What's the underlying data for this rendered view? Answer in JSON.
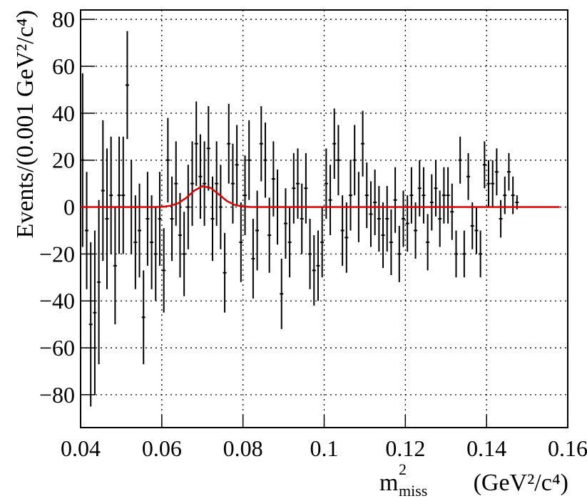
{
  "chart_data": {
    "type": "scatter",
    "y_label": "Events/(0.001 GeV²/c⁴)",
    "x_label": {
      "base": "m",
      "sup": "2",
      "sub": "miss",
      "unit": "(GeV²/c⁴)"
    },
    "xlim": [
      0.04,
      0.16
    ],
    "ylim": [
      -94,
      84
    ],
    "xticks": [
      0.04,
      0.06,
      0.08,
      0.1,
      0.12,
      0.14,
      0.16
    ],
    "yticks": [
      {
        "value": -80,
        "label": "−80"
      },
      {
        "value": -60,
        "label": "−60"
      },
      {
        "value": -40,
        "label": "−40"
      },
      {
        "value": -20,
        "label": "−20"
      },
      0,
      20,
      40,
      60,
      80
    ],
    "grid": true,
    "series": [
      {
        "color": "#000000",
        "x": [
          0.0405,
          0.0415,
          0.0425,
          0.0435,
          0.0445,
          0.0455,
          0.0465,
          0.0475,
          0.0485,
          0.0495,
          0.0505,
          0.0515,
          0.0525,
          0.0535,
          0.0545,
          0.0555,
          0.0565,
          0.0575,
          0.0585,
          0.0595,
          0.0605,
          0.0615,
          0.0625,
          0.0635,
          0.0645,
          0.0655,
          0.0665,
          0.0675,
          0.0685,
          0.0695,
          0.0705,
          0.0715,
          0.0725,
          0.0735,
          0.0745,
          0.0755,
          0.0765,
          0.0775,
          0.0785,
          0.0795,
          0.0805,
          0.0815,
          0.0825,
          0.0835,
          0.0845,
          0.0855,
          0.0865,
          0.0875,
          0.0885,
          0.0895,
          0.0905,
          0.0915,
          0.0925,
          0.0935,
          0.0945,
          0.0955,
          0.0965,
          0.0975,
          0.0985,
          0.0995,
          0.1005,
          0.1015,
          0.1025,
          0.1035,
          0.1045,
          0.1055,
          0.1065,
          0.1075,
          0.1085,
          0.1095,
          0.1105,
          0.1115,
          0.1125,
          0.1135,
          0.1145,
          0.1155,
          0.1165,
          0.1175,
          0.1185,
          0.1195,
          0.1205,
          0.1215,
          0.1225,
          0.1235,
          0.1245,
          0.1255,
          0.1265,
          0.1275,
          0.1285,
          0.1295,
          0.1305,
          0.1315,
          0.1325,
          0.1335,
          0.1345,
          0.1355,
          0.1365,
          0.1375,
          0.1385,
          0.1395,
          0.1405,
          0.1415,
          0.1425,
          0.1435,
          0.1445,
          0.1455,
          0.1465,
          0.1475
        ],
        "values": [
          20,
          -10,
          -50,
          -45,
          -32,
          7,
          -5,
          5,
          -25,
          5,
          5,
          52,
          0,
          -15,
          -10,
          -47,
          -5,
          -15,
          -20,
          -5,
          -27,
          20,
          -5,
          10,
          -12,
          -20,
          0,
          10,
          27,
          13,
          10,
          25,
          -5,
          10,
          0,
          -28,
          27,
          10,
          18,
          -15,
          5,
          20,
          -22,
          -10,
          27,
          20,
          -12,
          12,
          0,
          -37,
          -7,
          -15,
          8,
          10,
          -5,
          8,
          -20,
          -27,
          -25,
          -15,
          10,
          3,
          27,
          20,
          -10,
          -13,
          5,
          20,
          0,
          27,
          5,
          -3,
          2,
          -5,
          -12,
          -5,
          -15,
          3,
          -20,
          -5,
          -7,
          5,
          -10,
          8,
          5,
          -15,
          2,
          8,
          -5,
          5,
          5,
          -2,
          -20,
          20,
          -20,
          13,
          -8,
          -10,
          -20,
          18,
          10,
          10,
          15,
          -5,
          5,
          15,
          5,
          2
        ],
        "errors": [
          37,
          25,
          35,
          35,
          35,
          30,
          30,
          25,
          25,
          25,
          25,
          23,
          20,
          20,
          20,
          20,
          20,
          20,
          20,
          20,
          18,
          18,
          18,
          18,
          18,
          18,
          18,
          18,
          18,
          18,
          18,
          18,
          18,
          18,
          18,
          17,
          17,
          17,
          17,
          17,
          17,
          17,
          17,
          17,
          16,
          16,
          16,
          16,
          16,
          15,
          15,
          15,
          15,
          15,
          15,
          15,
          15,
          15,
          15,
          15,
          15,
          15,
          15,
          15,
          15,
          15,
          15,
          15,
          15,
          14,
          14,
          14,
          14,
          14,
          14,
          14,
          14,
          14,
          12,
          12,
          12,
          12,
          12,
          12,
          12,
          12,
          12,
          12,
          12,
          12,
          12,
          12,
          10,
          10,
          10,
          10,
          10,
          10,
          10,
          10,
          10,
          10,
          10,
          8,
          8,
          8,
          8,
          3
        ]
      },
      {
        "color": "#e00000",
        "x": [
          0.04,
          0.058,
          0.06,
          0.062,
          0.064,
          0.066,
          0.068,
          0.07,
          0.072,
          0.074,
          0.076,
          0.078,
          0.08,
          0.082,
          0.158
        ],
        "values": [
          0,
          0,
          0.1,
          0.5,
          1.6,
          3.9,
          7.0,
          8.9,
          8.2,
          5.5,
          2.6,
          0.9,
          0.2,
          0,
          0
        ]
      }
    ]
  }
}
